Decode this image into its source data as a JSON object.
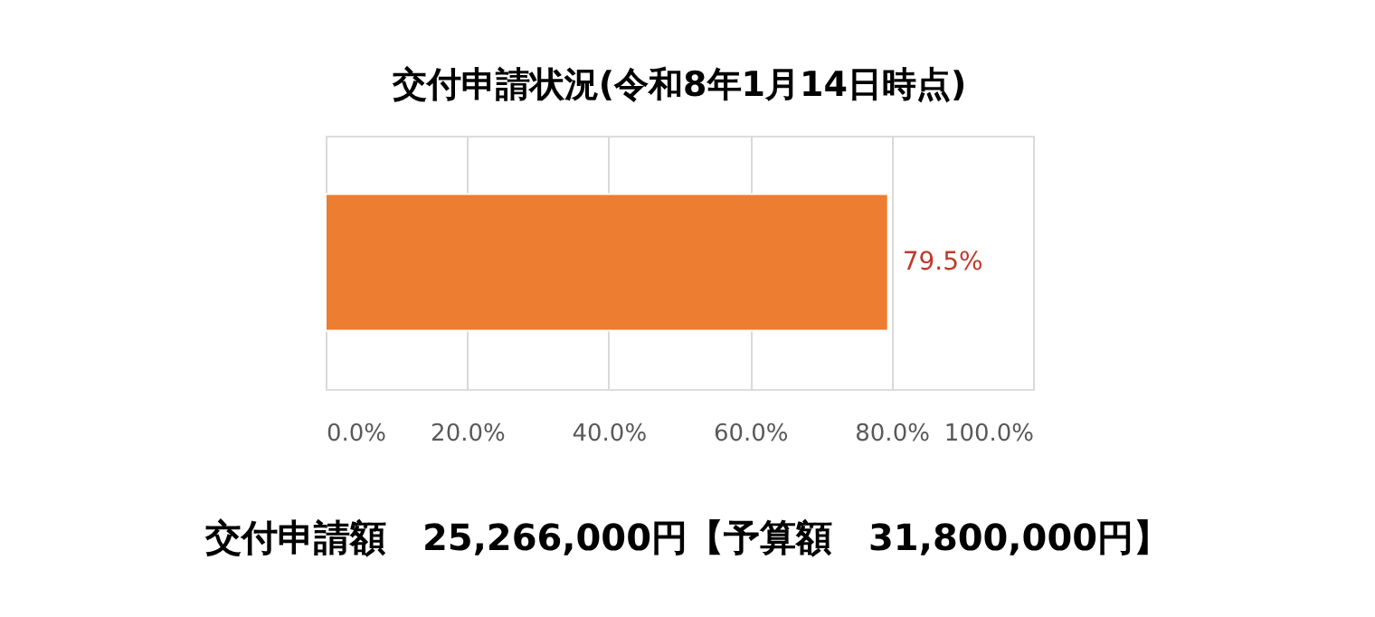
{
  "chart_data": {
    "type": "bar",
    "orientation": "horizontal",
    "title": "交付申請状況(令和8年1月14日時点)",
    "categories": [
      null
    ],
    "series": [
      {
        "color": "#ed7d31",
        "values": [
          79.5
        ],
        "value_labels": [
          "79.5%"
        ]
      }
    ],
    "xlim": [
      0,
      100
    ],
    "xticks": [
      {
        "value": 0,
        "label": "0.0%"
      },
      {
        "value": 20,
        "label": "20.0%"
      },
      {
        "value": 40,
        "label": "40.0%"
      },
      {
        "value": 60,
        "label": "60.0%"
      },
      {
        "value": 80,
        "label": "80.0%"
      },
      {
        "value": 100,
        "label": "100.0%"
      }
    ],
    "grid": "x",
    "annotations": [
      "交付申請額　25,266,000円【予算額　31,800,000円】"
    ]
  }
}
